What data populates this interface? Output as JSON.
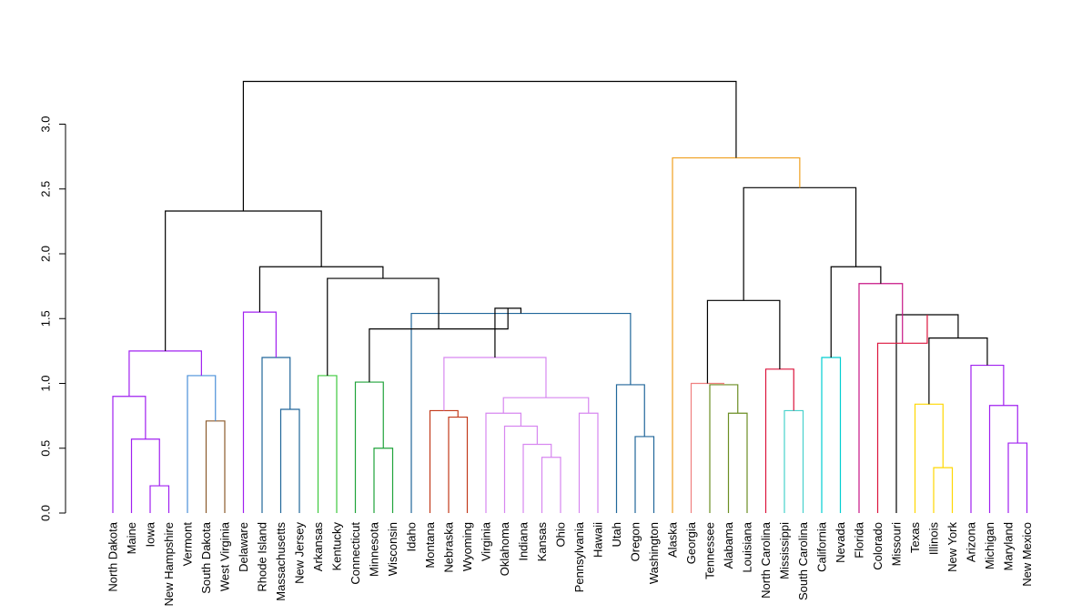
{
  "chart_data": {
    "type": "dendrogram",
    "title": "",
    "xlabel": "",
    "ylabel": "",
    "ylim": [
      0,
      3.3
    ],
    "y_ticks": [
      "0.0",
      "0.5",
      "1.0",
      "1.5",
      "2.0",
      "2.5",
      "3.0"
    ],
    "leaves": [
      "North Dakota",
      "Maine",
      "Iowa",
      "New Hampshire",
      "Vermont",
      "South Dakota",
      "West Virginia",
      "Delaware",
      "Rhode Island",
      "Massachusetts",
      "New Jersey",
      "Arkansas",
      "Kentucky",
      "Connecticut",
      "Minnesota",
      "Wisconsin",
      "Idaho",
      "Montana",
      "Nebraska",
      "Wyoming",
      "Virginia",
      "Oklahoma",
      "Indiana",
      "Kansas",
      "Ohio",
      "Pennsylvania",
      "Hawaii",
      "Utah",
      "Oregon",
      "Washington",
      "Alaska",
      "Georgia",
      "Tennessee",
      "Alabama",
      "Louisiana",
      "North Carolina",
      "Mississippi",
      "South Carolina",
      "California",
      "Nevada",
      "Florida",
      "Colorado",
      "Missouri",
      "Texas",
      "Illinois",
      "New York",
      "Arizona",
      "Michigan",
      "Maryland",
      "New Mexico"
    ],
    "merges": [
      {
        "a": "Iowa",
        "b": "New Hampshire",
        "h": 0.21,
        "color": "#a020f0"
      },
      {
        "a": "Maine",
        "b": "m1",
        "h": 0.57,
        "color": "#a020f0"
      },
      {
        "a": "North Dakota",
        "b": "m2",
        "h": 0.9,
        "color": "#a020f0"
      },
      {
        "a": "South Dakota",
        "b": "West Virginia",
        "h": 0.71,
        "color": "#8b5a2b"
      },
      {
        "a": "Vermont",
        "b": "m4",
        "h": 1.06,
        "color": "#4a90d9"
      },
      {
        "a": "m3",
        "b": "m5",
        "h": 1.25,
        "color": "#a020f0"
      },
      {
        "a": "Massachusetts",
        "b": "New Jersey",
        "h": 0.8,
        "color": "#20669a"
      },
      {
        "a": "Rhode Island",
        "b": "m7",
        "h": 1.2,
        "color": "#20669a"
      },
      {
        "a": "Delaware",
        "b": "m8",
        "h": 1.55,
        "color": "#a020f0"
      },
      {
        "a": "Arkansas",
        "b": "Kentucky",
        "h": 1.06,
        "color": "#3ec93e"
      },
      {
        "a": "Minnesota",
        "b": "Wisconsin",
        "h": 0.5,
        "color": "#1fa33a"
      },
      {
        "a": "Connecticut",
        "b": "m11",
        "h": 1.01,
        "color": "#1fa33a"
      },
      {
        "a": "Nebraska",
        "b": "Wyoming",
        "h": 0.74,
        "color": "#c23a1a"
      },
      {
        "a": "Montana",
        "b": "m13",
        "h": 0.79,
        "color": "#c23a1a"
      },
      {
        "a": "Kansas",
        "b": "Ohio",
        "h": 0.43,
        "color": "#d787f0"
      },
      {
        "a": "Indiana",
        "b": "m15",
        "h": 0.53,
        "color": "#d787f0"
      },
      {
        "a": "Oklahoma",
        "b": "m16",
        "h": 0.67,
        "color": "#d787f0"
      },
      {
        "a": "Virginia",
        "b": "m17",
        "h": 0.77,
        "color": "#d787f0"
      },
      {
        "a": "Pennsylvania",
        "b": "Hawaii",
        "h": 0.77,
        "color": "#d787f0"
      },
      {
        "a": "m18",
        "b": "m19",
        "h": 0.89,
        "color": "#d787f0"
      },
      {
        "a": "m14",
        "b": "m20",
        "h": 1.2,
        "color": "#d787f0"
      },
      {
        "a": "Oregon",
        "b": "Washington",
        "h": 0.59,
        "color": "#20669a"
      },
      {
        "a": "Utah",
        "b": "m22",
        "h": 0.99,
        "color": "#20669a"
      },
      {
        "a": "Idaho",
        "b": "m23",
        "h": 1.54,
        "color": "#20669a"
      },
      {
        "a": "m21",
        "b": "m24",
        "h": 1.58,
        "color": "#000000"
      },
      {
        "a": "m12",
        "b": "m25",
        "h": 1.42,
        "color": "#000000"
      },
      {
        "a": "m10",
        "b": "m26",
        "h": 1.81,
        "color": "#000000"
      },
      {
        "a": "m9",
        "b": "m27",
        "h": 1.9,
        "color": "#000000"
      },
      {
        "a": "m6",
        "b": "m28",
        "h": 2.33,
        "color": "#000000"
      },
      {
        "a": "Alabama",
        "b": "Louisiana",
        "h": 0.77,
        "color": "#6b8e23"
      },
      {
        "a": "Tennessee",
        "b": "m30",
        "h": 0.99,
        "color": "#6b8e23"
      },
      {
        "a": "Georgia",
        "b": "m31",
        "h": 1.0,
        "color": "#f08080"
      },
      {
        "a": "Mississippi",
        "b": "South Carolina",
        "h": 0.79,
        "color": "#48d1cc"
      },
      {
        "a": "North Carolina",
        "b": "m33",
        "h": 1.11,
        "color": "#dc143c"
      },
      {
        "a": "m32",
        "b": "m34",
        "h": 1.64,
        "color": "#000000"
      },
      {
        "a": "California",
        "b": "Nevada",
        "h": 1.2,
        "color": "#00ced1"
      },
      {
        "a": "Illinois",
        "b": "New York",
        "h": 0.35,
        "color": "#ffd700"
      },
      {
        "a": "Texas",
        "b": "m37",
        "h": 0.84,
        "color": "#ffd700"
      },
      {
        "a": "Maryland",
        "b": "New Mexico",
        "h": 0.54,
        "color": "#a020f0"
      },
      {
        "a": "Michigan",
        "b": "m39",
        "h": 0.83,
        "color": "#a020f0"
      },
      {
        "a": "Arizona",
        "b": "m40",
        "h": 1.14,
        "color": "#a020f0"
      },
      {
        "a": "m38",
        "b": "m41",
        "h": 1.35,
        "color": "#000000"
      },
      {
        "a": "Missouri",
        "b": "m42",
        "h": 1.53,
        "color": "#000000"
      },
      {
        "a": "Colorado",
        "b": "m43",
        "h": 1.31,
        "color": "#dc143c"
      },
      {
        "a": "Florida",
        "b": "m44",
        "h": 1.77,
        "color": "#c71585"
      },
      {
        "a": "m36",
        "b": "m45",
        "h": 1.9,
        "color": "#000000"
      },
      {
        "a": "m35",
        "b": "m46",
        "h": 2.51,
        "color": "#000000"
      },
      {
        "a": "Alaska",
        "b": "m47",
        "h": 2.74,
        "color": "#f0a020"
      },
      {
        "a": "m29",
        "b": "m48",
        "h": 3.33,
        "color": "#000000"
      }
    ]
  }
}
